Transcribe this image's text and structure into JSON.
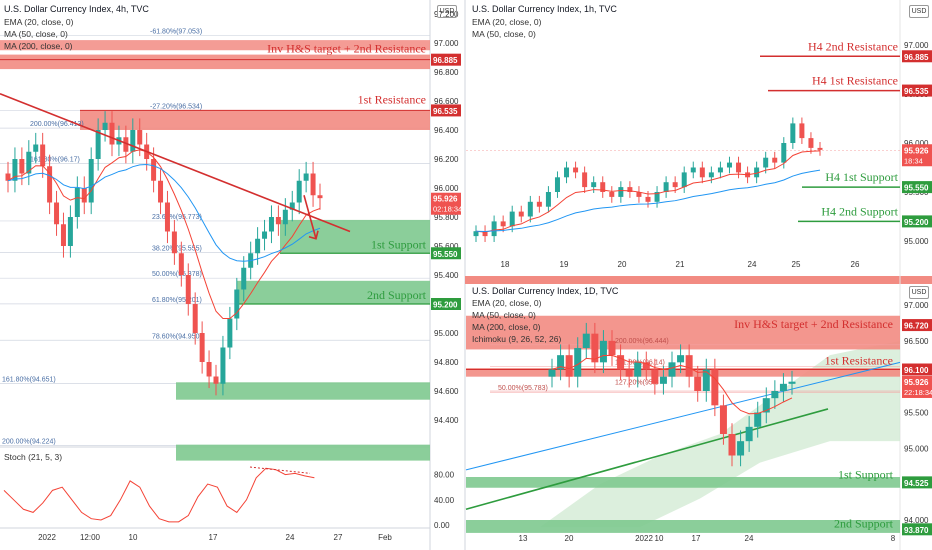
{
  "colors": {
    "up": "#26a69a",
    "down": "#ef5350",
    "resist_fill": "#f28b82",
    "support_fill": "#7ec98f",
    "green_line": "#2e9c3e",
    "red_line": "#d32f2f",
    "ema": "#f44336",
    "ma50": "#2196f3",
    "fib": "#90a4c0"
  },
  "left": {
    "title": "U.S. Dollar Currency Index, 4h, TVC",
    "indicators": [
      "EMA (20, close, 0)",
      "MA (50, close, 0)",
      "MA (200, close, 0)"
    ],
    "stoch_label": "Stoch (21, 5, 3)",
    "price_ticks": [
      "97.200",
      "97.000",
      "96.800",
      "96.600",
      "96.400",
      "96.200",
      "96.000",
      "95.800",
      "95.600",
      "95.400",
      "95.200",
      "95.000",
      "94.800",
      "94.600",
      "94.400"
    ],
    "stoch_ticks": [
      "80.00",
      "40.00",
      "0.00"
    ],
    "x_ticks": [
      "2022",
      "12:00",
      "10",
      "17",
      "24",
      "27",
      "Feb"
    ],
    "levels": [
      {
        "label": "Inv H&S target + 2nd Resistance",
        "price": "96.885"
      },
      {
        "label": "1st Resistance",
        "price": "96.535"
      },
      {
        "label": "1st Support",
        "price": "95.550"
      },
      {
        "label": "2nd Support",
        "price": "95.200"
      }
    ],
    "fib_labels": [
      "-61.80%(97.053)",
      "-27.20%(96.534)",
      "200.00%(96.413)",
      "161.80%(96.17)",
      "23.60%(95.773)",
      "38.20%(95.555)",
      "50.00%(95.378)",
      "61.80%(95.201)",
      "78.60%(94.950)",
      "161.80%(94.651)",
      "200.00%(94.224)"
    ],
    "last_price": "95.926",
    "countdown": "02:18:34",
    "chart_data": {
      "type": "candlestick",
      "ylim": [
        94.3,
        97.3
      ],
      "close_series": [
        96.05,
        96.2,
        96.1,
        96.25,
        96.3,
        96.15,
        95.9,
        95.75,
        95.6,
        95.8,
        96.0,
        95.9,
        96.2,
        96.4,
        96.45,
        96.3,
        96.35,
        96.25,
        96.4,
        96.3,
        96.2,
        96.05,
        95.9,
        95.7,
        95.55,
        95.4,
        95.2,
        95.0,
        94.8,
        94.7,
        94.65,
        94.9,
        95.1,
        95.3,
        95.45,
        95.55,
        95.65,
        95.7,
        95.8,
        95.75,
        95.85,
        95.9,
        96.05,
        96.1,
        95.95,
        95.93
      ]
    }
  },
  "top_right": {
    "title": "U.S. Dollar Currency Index, 1h, TVC",
    "indicators": [
      "EMA (20, close, 0)",
      "MA (50, close, 0)"
    ],
    "price_ticks": [
      "97.000",
      "96.500",
      "96.000",
      "95.500",
      "95.000"
    ],
    "x_ticks": [
      "18",
      "19",
      "20",
      "21",
      "24",
      "25",
      "26"
    ],
    "levels": [
      {
        "label": "H4 2nd Resistance",
        "price": "96.885"
      },
      {
        "label": "H4 1st Resistance",
        "price": "96.535"
      },
      {
        "label": "H4 1st Support",
        "price": "95.550"
      },
      {
        "label": "H4 2nd Support",
        "price": "95.200"
      }
    ],
    "last_price": "95.926",
    "countdown": "18:34",
    "chart_data": {
      "type": "candlestick",
      "ylim": [
        94.8,
        97.2
      ],
      "close_series": [
        95.1,
        95.05,
        95.2,
        95.15,
        95.3,
        95.25,
        95.4,
        95.35,
        95.5,
        95.65,
        95.75,
        95.7,
        95.55,
        95.6,
        95.5,
        95.45,
        95.55,
        95.5,
        95.45,
        95.4,
        95.5,
        95.6,
        95.55,
        95.7,
        95.75,
        95.65,
        95.7,
        95.75,
        95.8,
        95.7,
        95.65,
        95.75,
        95.85,
        95.8,
        96.0,
        96.2,
        96.05,
        95.95,
        95.93
      ]
    }
  },
  "bottom_right": {
    "title": "U.S. Dollar Currency Index, 1D, TVC",
    "indicators": [
      "EMA (20, close, 0)",
      "MA (50, close, 0)",
      "MA (200, close, 0)",
      "Ichimoku (9, 26, 52, 26)"
    ],
    "price_ticks": [
      "97.000",
      "96.500",
      "95.500",
      "95.000",
      "94.000"
    ],
    "x_ticks": [
      "13",
      "20",
      "2022",
      "10",
      "17",
      "24",
      "8"
    ],
    "levels": [
      {
        "label": "Inv H&S target + 2nd Resistance",
        "price": "96.720"
      },
      {
        "label": "1st Resistance",
        "price": "96.100"
      },
      {
        "label": "1st Support",
        "price": "94.525"
      },
      {
        "label": "2nd Support",
        "price": "93.870"
      }
    ],
    "fib_labels": [
      "200.00%(96.444)",
      "161.80%(96.14)",
      "127.20%(95.8",
      "50.00%(95.783)"
    ],
    "last_price": "95.926",
    "countdown": "22:18:34",
    "chart_data": {
      "type": "candlestick",
      "ylim": [
        93.9,
        97.2
      ],
      "close_series": [
        96.1,
        96.3,
        96.0,
        96.4,
        96.6,
        96.2,
        96.5,
        96.3,
        96.1,
        96.0,
        96.2,
        96.1,
        95.9,
        96.0,
        96.2,
        96.3,
        96.0,
        95.8,
        96.1,
        95.6,
        95.2,
        94.9,
        95.1,
        95.3,
        95.5,
        95.7,
        95.8,
        95.9,
        95.93
      ]
    }
  }
}
